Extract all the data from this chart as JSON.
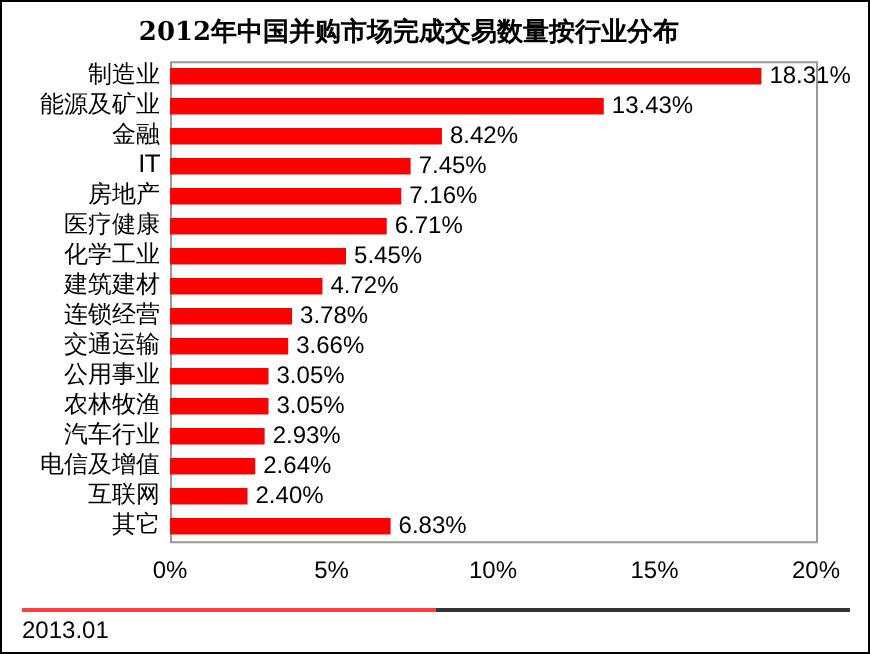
{
  "chart_data": {
    "type": "bar",
    "orientation": "horizontal",
    "title": "2012年中国并购市场完成交易数量按行业分布",
    "categories": [
      "制造业",
      "能源及矿业",
      "金融",
      "IT",
      "房地产",
      "医疗健康",
      "化学工业",
      "建筑建材",
      "连锁经营",
      "交通运输",
      "公用事业",
      "农林牧渔",
      "汽车行业",
      "电信及增值",
      "互联网",
      "其它"
    ],
    "values": [
      18.31,
      13.43,
      8.42,
      7.45,
      7.16,
      6.71,
      5.45,
      4.72,
      3.78,
      3.66,
      3.05,
      3.05,
      2.93,
      2.64,
      2.4,
      6.83
    ],
    "value_labels": [
      "18.31%",
      "13.43%",
      "8.42%",
      "7.45%",
      "7.16%",
      "6.71%",
      "5.45%",
      "4.72%",
      "3.78%",
      "3.66%",
      "3.05%",
      "3.05%",
      "2.93%",
      "2.64%",
      "2.40%",
      "6.83%"
    ],
    "color": "#ff0000",
    "xlim": [
      0,
      20
    ],
    "xticks": [
      {
        "value": 0,
        "label": "0%"
      },
      {
        "value": 5,
        "label": "5%"
      },
      {
        "value": 10,
        "label": "10%"
      },
      {
        "value": 15,
        "label": "15%"
      },
      {
        "value": 20,
        "label": "20%"
      }
    ],
    "grid": false,
    "legend": false,
    "annotations": [
      "2013.01"
    ]
  }
}
